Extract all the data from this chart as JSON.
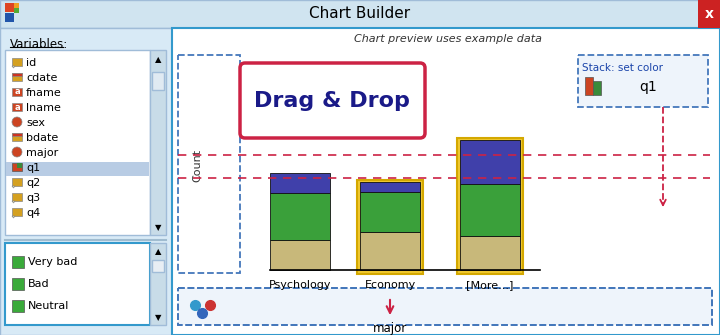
{
  "title": "Chart Builder",
  "bg_outer": "#cfe0ef",
  "preview_text": "Chart preview uses example data",
  "variables_label": "Variables:",
  "variable_list": [
    "id",
    "cdate",
    "fname",
    "lname",
    "sex",
    "bdate",
    "major",
    "q1",
    "q2",
    "q3",
    "q4",
    "..."
  ],
  "legend_items": [
    "Very bad",
    "Bad",
    "Neutral"
  ],
  "bar_colors": [
    "#c8b87a",
    "#3aa03a",
    "#4040aa"
  ],
  "drag_drop_text": "Drag & Drop",
  "stack_label": "Stack: set color",
  "stack_var": "q1",
  "x_label": "major",
  "y_label": "Count",
  "x_categories": [
    "Psychology",
    "Economy",
    "[More...]"
  ],
  "psych_bars": [
    0.19,
    0.3,
    0.13
  ],
  "econ_bars": [
    0.24,
    0.26,
    0.06
  ],
  "more_bars": [
    0.22,
    0.33,
    0.28
  ],
  "yellow_highlight": "#f0c830",
  "red_dashed": "#cc2244",
  "blue_dashed": "#4477bb",
  "icon_pencil_color": "#d4a020",
  "icon_circle_color": "#cc4422",
  "icon_cal_color": "#d4a020"
}
